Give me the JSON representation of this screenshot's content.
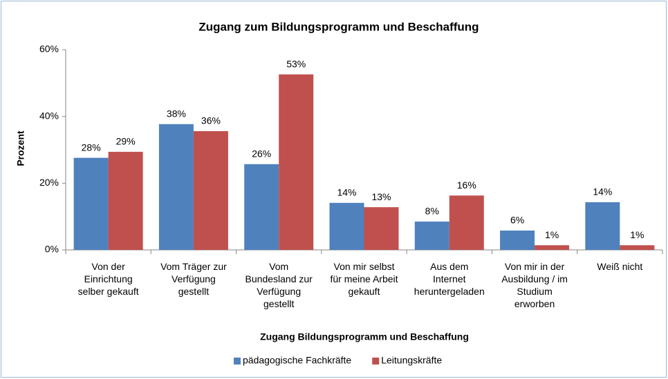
{
  "chart_data": {
    "type": "bar",
    "title": "Zugang zum Bildungsprogramm und Beschaffung",
    "xlabel": "Zugang  Bildungsprogramm und Beschaffung",
    "ylabel": "Prozent",
    "categories": [
      "Von der\nEinrichtung\nselber gekauft",
      "Vom Träger zur\nVerfügung\ngestellt",
      "Vom\nBundesland zur\nVerfügung\ngestellt",
      "Von mir selbst\nfür meine Arbeit\ngekauft",
      "Aus dem\nInternet\nheruntergeladen",
      "Von mir in der\nAusbildung / im\nStudium\nerworben",
      "Weiß nicht"
    ],
    "series": [
      {
        "name": "pädagogische Fachkräfte",
        "color": "#4f81bd",
        "values": [
          27.6,
          37.7,
          25.7,
          14.1,
          8.5,
          5.8,
          14.3
        ],
        "value_labels": [
          "28%",
          "38%",
          "26%",
          "14%",
          "8%",
          "6%",
          "14%"
        ]
      },
      {
        "name": "Leitungskräfte",
        "color": "#c0504d",
        "values": [
          29.4,
          35.6,
          52.6,
          12.8,
          16.3,
          1.4,
          1.4
        ],
        "value_labels": [
          "29%",
          "36%",
          "53%",
          "13%",
          "16%",
          "1%",
          "1%"
        ]
      }
    ],
    "ylim": [
      0,
      60
    ],
    "yticks": [
      {
        "value": 0,
        "label": "0%"
      },
      {
        "value": 20,
        "label": "20%"
      },
      {
        "value": 40,
        "label": "40%"
      },
      {
        "value": 60,
        "label": "60%"
      }
    ],
    "grid": false,
    "legend": "bottom"
  }
}
